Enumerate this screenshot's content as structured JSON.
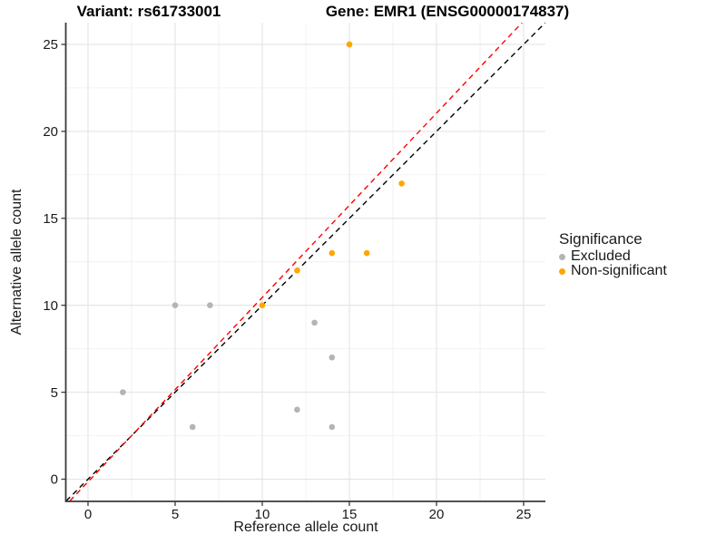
{
  "titles": {
    "variant": "Variant: rs61733001",
    "gene": "Gene: EMR1 (ENSG00000174837)"
  },
  "chart_data": {
    "type": "scatter",
    "xlabel": "Reference allele count",
    "ylabel": "Alternative allele count",
    "xlim": [
      -1.25,
      26.25
    ],
    "ylim": [
      -1.25,
      26.25
    ],
    "x_ticks": [
      0,
      5,
      10,
      15,
      20,
      25
    ],
    "y_ticks": [
      0,
      5,
      10,
      15,
      20,
      25
    ],
    "x_minor_ticks": [
      2.5,
      7.5,
      12.5,
      17.5,
      22.5
    ],
    "y_minor_ticks": [
      2.5,
      7.5,
      12.5,
      17.5,
      22.5
    ],
    "grid": true,
    "legend_title": "Significance",
    "legend_position": "right",
    "series": [
      {
        "name": "Excluded",
        "color": "#B4B4B4",
        "points": [
          [
            2,
            5
          ],
          [
            5,
            10
          ],
          [
            6,
            3
          ],
          [
            7,
            10
          ],
          [
            12,
            4
          ],
          [
            13,
            9
          ],
          [
            14,
            3
          ],
          [
            14,
            7
          ]
        ]
      },
      {
        "name": "Non-significant",
        "color": "#FFA500",
        "points": [
          [
            10,
            10
          ],
          [
            12,
            12
          ],
          [
            14,
            13
          ],
          [
            15,
            25
          ],
          [
            16,
            13
          ],
          [
            18,
            17
          ]
        ]
      }
    ],
    "reference_lines": [
      {
        "name": "identity-line",
        "color": "#000000",
        "style": "dashed",
        "x1": -1.25,
        "y1": -1.25,
        "x2": 26.25,
        "y2": 26.25
      },
      {
        "name": "fitted-line",
        "color": "#FF0000",
        "style": "dashed",
        "x1": -1.04,
        "y1": -1.25,
        "x2": 24.91,
        "y2": 26.25
      }
    ],
    "colors": {
      "major_grid": "#E3E3E3",
      "minor_grid": "#F1F1F1",
      "axis": "#3a3a3a",
      "tick_label": "#1a1a1a"
    }
  }
}
